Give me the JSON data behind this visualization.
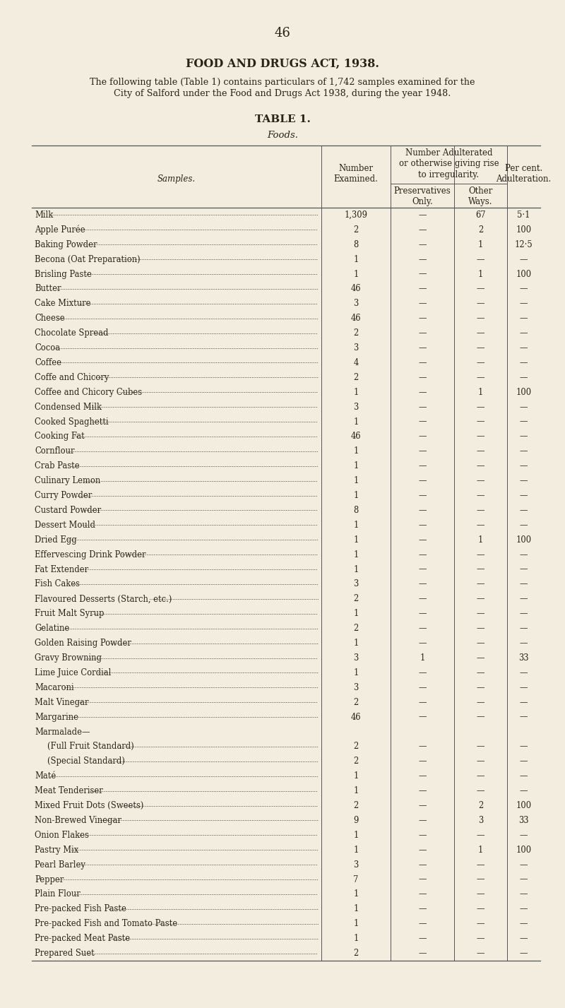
{
  "page_number": "46",
  "title": "FOOD AND DRUGS ACT, 1938.",
  "subtitle_line1": "The following table (Table 1) contains particulars of 1,742 samples examined for the",
  "subtitle_line2": "City of Salford under the Food and Drugs Act 1938, during the year 1948.",
  "table_title": "TABLE 1.",
  "table_subtitle": "Foods.",
  "bg_color": "#f3ede0",
  "text_color": "#2a2318",
  "rows": [
    [
      "Milk",
      "1,309",
      "—",
      "67",
      "5·1"
    ],
    [
      "Apple Purée",
      "2",
      "—",
      "2",
      "100"
    ],
    [
      "Baking Powder",
      "8",
      "—",
      "1",
      "12·5"
    ],
    [
      "Becona (Oat Preparation)",
      "1",
      "—",
      "—",
      "—"
    ],
    [
      "Brisling Paste",
      "1",
      "—",
      "1",
      "100"
    ],
    [
      "Butter",
      "46",
      "—",
      "—",
      "—"
    ],
    [
      "Cake Mixture",
      "3",
      "—",
      "—",
      "—"
    ],
    [
      "Cheese",
      "46",
      "—",
      "—",
      "—"
    ],
    [
      "Chocolate Spread",
      "2",
      "—",
      "—",
      "—"
    ],
    [
      "Cocoa",
      "3",
      "—",
      "—",
      "—"
    ],
    [
      "Coffee",
      "4",
      "—",
      "—",
      "—"
    ],
    [
      "Coffe and Chicory",
      "2",
      "—",
      "—",
      "—"
    ],
    [
      "Coffee and Chicory Cubes",
      "1",
      "—",
      "1",
      "100"
    ],
    [
      "Condensed Milk",
      "3",
      "—",
      "—",
      "—"
    ],
    [
      "Cooked Spaghetti",
      "1",
      "—",
      "—",
      "—"
    ],
    [
      "Cooking Fat",
      "46",
      "—",
      "—",
      "—"
    ],
    [
      "Cornflour",
      "1",
      "—",
      "—",
      "—"
    ],
    [
      "Crab Paste",
      "1",
      "—",
      "—",
      "—"
    ],
    [
      "Culinary Lemon",
      "1",
      "—",
      "—",
      "—"
    ],
    [
      "Curry Powder",
      "1",
      "—",
      "—",
      "—"
    ],
    [
      "Custard Powder",
      "8",
      "—",
      "—",
      "—"
    ],
    [
      "Dessert Mould",
      "1",
      "—",
      "—",
      "—"
    ],
    [
      "Dried Egg",
      "1",
      "—",
      "1",
      "100"
    ],
    [
      "Effervescing Drink Powder",
      "1",
      "—",
      "—",
      "—"
    ],
    [
      "Fat Extender",
      "1",
      "—",
      "—",
      "—"
    ],
    [
      "Fish Cakes",
      "3",
      "—",
      "—",
      "—"
    ],
    [
      "Flavoured Desserts (Starch, etc.)",
      "2",
      "—",
      "—",
      "—"
    ],
    [
      "Fruit Malt Syrup",
      "1",
      "—",
      "—",
      "—"
    ],
    [
      "Gelatine",
      "2",
      "—",
      "—",
      "—"
    ],
    [
      "Golden Raising Powder",
      "1",
      "—",
      "—",
      "—"
    ],
    [
      "Gravy Browning",
      "3",
      "1",
      "—",
      "33"
    ],
    [
      "Lime Juice Cordial",
      "1",
      "—",
      "—",
      "—"
    ],
    [
      "Macaroni",
      "3",
      "—",
      "—",
      "—"
    ],
    [
      "Malt Vinegar",
      "2",
      "—",
      "—",
      "—"
    ],
    [
      "Margarine",
      "46",
      "—",
      "—",
      "—"
    ],
    [
      "Marmalade—",
      "",
      "",
      "",
      ""
    ],
    [
      "(Full Fruit Standard)",
      "2",
      "—",
      "—",
      "—"
    ],
    [
      "(Special Standard)",
      "2",
      "—",
      "—",
      "—"
    ],
    [
      "Maté",
      "1",
      "—",
      "—",
      "—"
    ],
    [
      "Meat Tenderiser",
      "1",
      "—",
      "—",
      "—"
    ],
    [
      "Mixed Fruit Dots (Sweets)",
      "2",
      "—",
      "2",
      "100"
    ],
    [
      "Non-Brewed Vinegar",
      "9",
      "—",
      "3",
      "33"
    ],
    [
      "Onion Flakes",
      "1",
      "—",
      "—",
      "—"
    ],
    [
      "Pastry Mix",
      "1",
      "—",
      "1",
      "100"
    ],
    [
      "Pearl Barley",
      "3",
      "—",
      "—",
      "—"
    ],
    [
      "Pepper",
      "7",
      "—",
      "—",
      "—"
    ],
    [
      "Plain Flour",
      "1",
      "—",
      "—",
      "—"
    ],
    [
      "Pre-packed Fish Paste",
      "1",
      "—",
      "—",
      "—"
    ],
    [
      "Pre-packed Fish and Tomato Paste",
      "1",
      "—",
      "—",
      "—"
    ],
    [
      "Pre-packed Meat Paste",
      "1",
      "—",
      "—",
      "—"
    ],
    [
      "Prepared Suet",
      "2",
      "—",
      "—",
      "—"
    ]
  ],
  "indented_rows": [
    36,
    37
  ],
  "marmalade_row": 35
}
